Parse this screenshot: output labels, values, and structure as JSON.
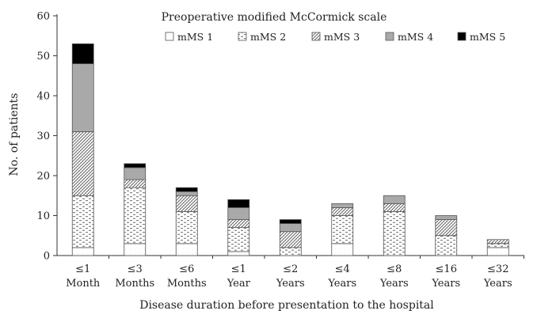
{
  "chart_data": {
    "type": "bar",
    "stacked": true,
    "legend_title": "Preoperative modified McCormick scale",
    "legend_placement": "top-right",
    "xlabel": "Disease duration before presentation to the hospital",
    "ylabel": "No. of patients",
    "ylim": [
      0,
      60
    ],
    "yticks": [
      0,
      10,
      20,
      30,
      40,
      50,
      60
    ],
    "grid": false,
    "categories": [
      [
        "≤1",
        "Month"
      ],
      [
        "≤3",
        "Months"
      ],
      [
        "≤6",
        "Months"
      ],
      [
        "≤1",
        "Year"
      ],
      [
        "≤2",
        "Years"
      ],
      [
        "≤4",
        "Years"
      ],
      [
        "≤8",
        "Years"
      ],
      [
        "≤16",
        "Years"
      ],
      [
        "≤32",
        "Years"
      ]
    ],
    "series": [
      {
        "name": "mMS 1",
        "fill": "pattern-white",
        "values": [
          2,
          3,
          3,
          1,
          0,
          3,
          0,
          0,
          2
        ]
      },
      {
        "name": "mMS 2",
        "fill": "pattern-dashes",
        "values": [
          13,
          14,
          8,
          6,
          2,
          7,
          11,
          5,
          1
        ]
      },
      {
        "name": "mMS 3",
        "fill": "pattern-hatch",
        "values": [
          16,
          2,
          4,
          2,
          4,
          2,
          2,
          4,
          1
        ]
      },
      {
        "name": "mMS 4",
        "fill": "#a9a9a9",
        "values": [
          17,
          3,
          1,
          3,
          2,
          1,
          2,
          1,
          0
        ]
      },
      {
        "name": "mMS 5",
        "fill": "#000000",
        "values": [
          5,
          1,
          1,
          2,
          1,
          0,
          0,
          0,
          0
        ]
      }
    ]
  }
}
